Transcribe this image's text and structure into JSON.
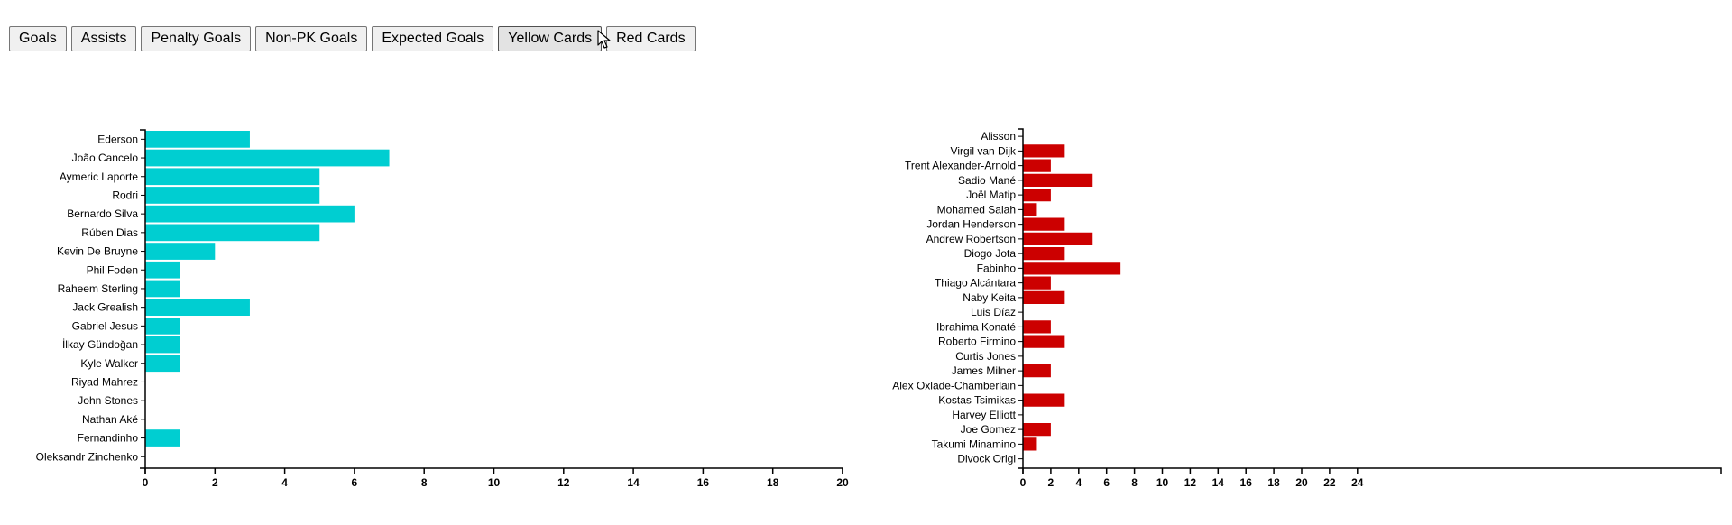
{
  "toolbar": {
    "buttons": [
      {
        "label": "Goals"
      },
      {
        "label": "Assists"
      },
      {
        "label": "Penalty Goals"
      },
      {
        "label": "Non-PK Goals"
      },
      {
        "label": "Expected Goals"
      },
      {
        "label": "Yellow Cards"
      },
      {
        "label": "Red Cards"
      }
    ],
    "active_label": "Yellow Cards"
  },
  "chart_data": [
    {
      "type": "bar",
      "orientation": "horizontal",
      "color": "#00CED1",
      "title": "",
      "xlabel": "",
      "ylabel": "",
      "xlim": [
        0,
        20
      ],
      "x_ticks": [
        0,
        2,
        4,
        6,
        8,
        10,
        12,
        14,
        16,
        18,
        20
      ],
      "grid": false,
      "categories": [
        "Ederson",
        "João Cancelo",
        "Aymeric Laporte",
        "Rodri",
        "Bernardo Silva",
        "Rúben Dias",
        "Kevin De Bruyne",
        "Phil Foden",
        "Raheem Sterling",
        "Jack Grealish",
        "Gabriel Jesus",
        "İlkay Gündoğan",
        "Kyle Walker",
        "Riyad Mahrez",
        "John Stones",
        "Nathan Aké",
        "Fernandinho",
        "Oleksandr Zinchenko"
      ],
      "values": [
        3,
        7,
        5,
        5,
        6,
        5,
        2,
        1,
        1,
        3,
        1,
        1,
        1,
        0,
        0,
        0,
        1,
        0
      ]
    },
    {
      "type": "bar",
      "orientation": "horizontal",
      "color": "#CC0000",
      "title": "",
      "xlabel": "",
      "ylabel": "",
      "xlim": [
        0,
        25
      ],
      "x_ticks": [
        0,
        2,
        4,
        6,
        8,
        10,
        12,
        14,
        16,
        18,
        20,
        22,
        24
      ],
      "grid": false,
      "categories": [
        "Alisson",
        "Virgil van Dijk",
        "Trent Alexander-Arnold",
        "Sadio Mané",
        "Joël Matip",
        "Mohamed Salah",
        "Jordan Henderson",
        "Andrew Robertson",
        "Diogo Jota",
        "Fabinho",
        "Thiago Alcántara",
        "Naby Keita",
        "Luis Díaz",
        "Ibrahima Konaté",
        "Roberto Firmino",
        "Curtis Jones",
        "James Milner",
        "Alex Oxlade-Chamberlain",
        "Kostas Tsimikas",
        "Harvey Elliott",
        "Joe Gomez",
        "Takumi Minamino",
        "Divock Origi"
      ],
      "values": [
        0,
        3,
        2,
        5,
        2,
        1,
        3,
        5,
        3,
        7,
        2,
        3,
        0,
        2,
        3,
        0,
        2,
        0,
        3,
        0,
        2,
        1,
        0
      ]
    }
  ]
}
